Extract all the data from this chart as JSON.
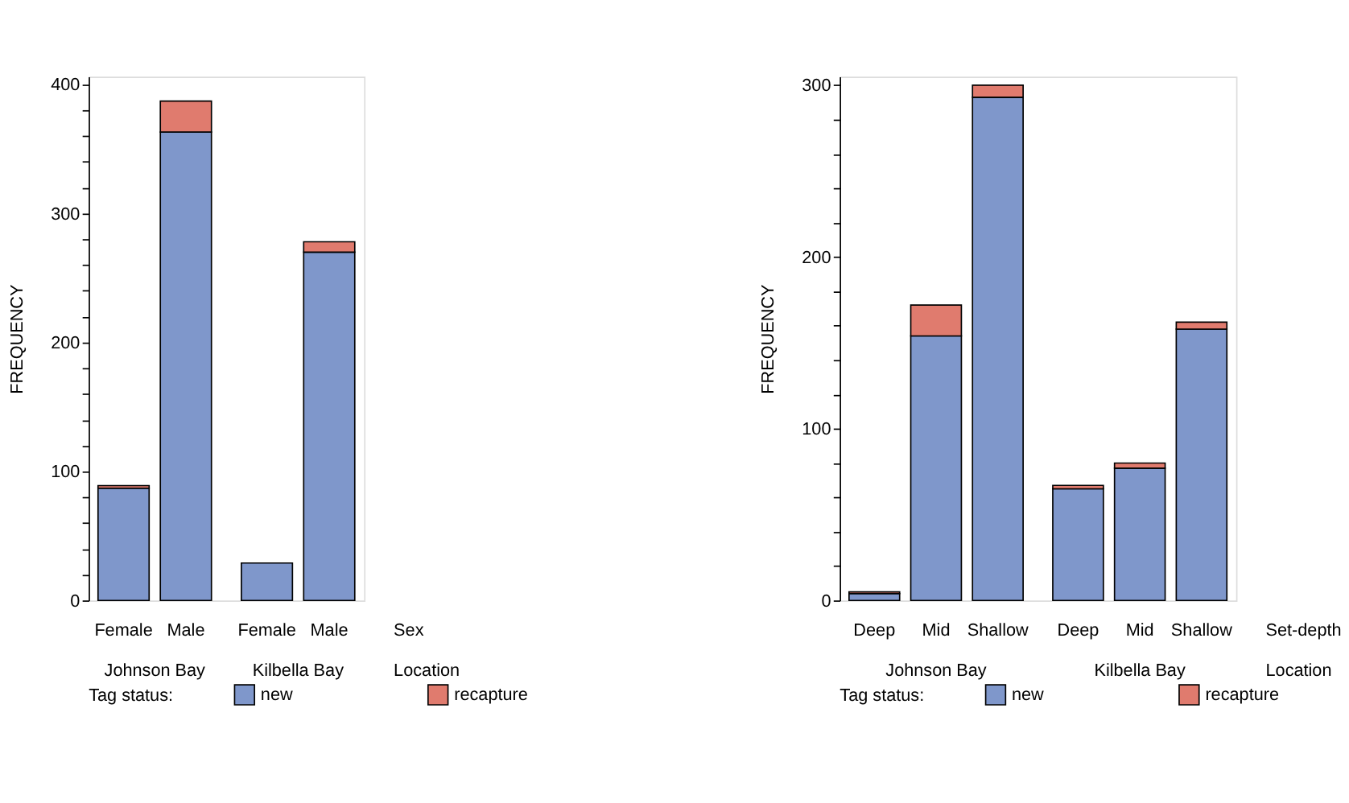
{
  "chart_data": [
    {
      "type": "bar",
      "stacked": true,
      "categories": [
        "Female",
        "Male",
        "Female",
        "Male"
      ],
      "series": [
        {
          "name": "new",
          "color": "#7f97cb",
          "values": [
            87,
            363,
            29,
            270
          ]
        },
        {
          "name": "recapture",
          "color": "#e07b6e",
          "values": [
            2,
            24,
            null,
            8
          ]
        }
      ],
      "ylabel": "FREQUENCY",
      "ylim": [
        0,
        406
      ],
      "yticks": [
        0,
        {
          "value": 20,
          "label": null
        },
        {
          "value": 40,
          "label": null
        },
        {
          "value": 60,
          "label": null
        },
        {
          "value": 80,
          "label": null
        },
        100,
        {
          "value": 120,
          "label": null
        },
        {
          "value": 140,
          "label": null
        },
        {
          "value": 160,
          "label": null
        },
        {
          "value": 180,
          "label": null
        },
        200,
        {
          "value": 220,
          "label": null
        },
        {
          "value": 240,
          "label": null
        },
        {
          "value": 260,
          "label": null
        },
        {
          "value": 280,
          "label": null
        },
        300,
        {
          "value": 320,
          "label": null
        },
        {
          "value": 340,
          "label": null
        },
        {
          "value": 360,
          "label": null
        },
        {
          "value": 380,
          "label": null
        },
        400
      ],
      "legend": "bottom",
      "legend_title": "Tag status:",
      "annotations": [
        "Johnson Bay",
        "Kilbella Bay",
        "Sex",
        "Location"
      ]
    },
    {
      "type": "bar",
      "stacked": true,
      "categories": [
        "Deep",
        "Mid",
        "Shallow",
        "Deep",
        "Mid",
        "Shallow"
      ],
      "series": [
        {
          "name": "new",
          "color": "#7f97cb",
          "values": [
            4,
            154,
            293,
            65,
            77,
            158
          ]
        },
        {
          "name": "recapture",
          "color": "#e07b6e",
          "values": [
            1,
            18,
            7,
            2,
            3,
            4
          ]
        }
      ],
      "ylabel": "FREQUENCY",
      "ylim": [
        0,
        305
      ],
      "yticks": [
        0,
        {
          "value": 20,
          "label": null
        },
        {
          "value": 40,
          "label": null
        },
        {
          "value": 60,
          "label": null
        },
        {
          "value": 80,
          "label": null
        },
        100,
        {
          "value": 120,
          "label": null
        },
        {
          "value": 140,
          "label": null
        },
        {
          "value": 160,
          "label": null
        },
        {
          "value": 180,
          "label": null
        },
        200,
        {
          "value": 220,
          "label": null
        },
        {
          "value": 240,
          "label": null
        },
        {
          "value": 260,
          "label": null
        },
        {
          "value": 280,
          "label": null
        },
        300
      ],
      "legend": "bottom",
      "legend_title": "Tag status:",
      "annotations": [
        "Johnson Bay",
        "Kilbella Bay",
        "Set-depth",
        "Location"
      ]
    }
  ]
}
